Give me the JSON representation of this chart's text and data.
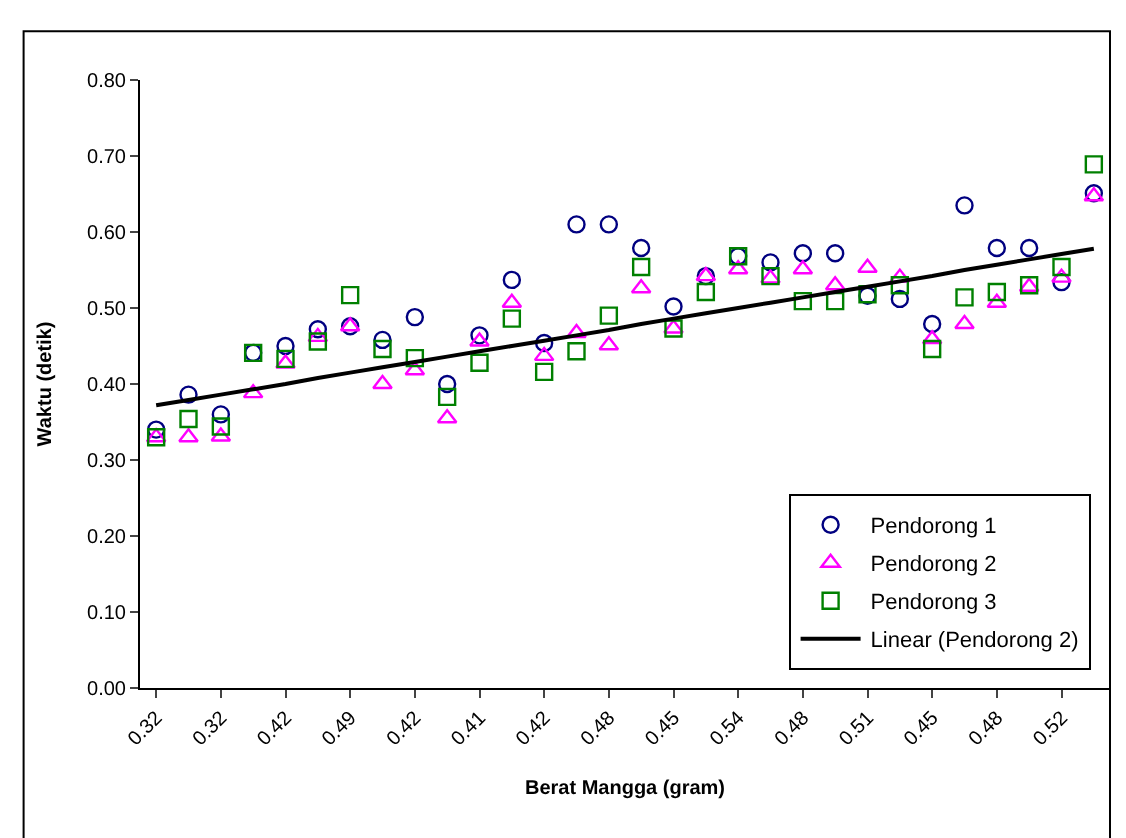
{
  "chart_data": {
    "type": "scatter",
    "xlabel": "Berat Mangga (gram)",
    "ylabel": "Waktu (detik)",
    "categories": [
      "0.32",
      null,
      "0.32",
      null,
      "0.42",
      null,
      "0.49",
      null,
      "0.42",
      null,
      "0.41",
      null,
      "0.42",
      null,
      "0.48",
      null,
      "0.45",
      null,
      "0.54",
      null,
      "0.48",
      null,
      "0.51",
      null,
      "0.45",
      null,
      "0.48",
      null,
      "0.52",
      null
    ],
    "series": [
      {
        "name": "Pendorong 1",
        "color": "#000080",
        "marker": "circle",
        "values": [
          0.34,
          0.386,
          0.36,
          0.441,
          0.45,
          0.472,
          0.476,
          0.458,
          0.488,
          0.4,
          0.464,
          0.537,
          0.454,
          0.61,
          0.61,
          0.579,
          0.502,
          0.542,
          0.568,
          0.56,
          0.572,
          0.572,
          0.516,
          0.512,
          0.479,
          0.635,
          0.579,
          0.579,
          0.534,
          0.651
        ]
      },
      {
        "name": "Pendorong 2",
        "color": "#ff00ff",
        "marker": "triangle",
        "values": [
          0.33,
          0.33,
          0.331,
          0.388,
          0.427,
          0.462,
          0.476,
          0.4,
          0.418,
          0.355,
          0.456,
          0.507,
          0.437,
          0.467,
          0.451,
          0.526,
          0.473,
          0.542,
          0.551,
          0.539,
          0.551,
          0.53,
          0.553,
          0.54,
          0.459,
          0.479,
          0.507,
          0.528,
          0.54,
          0.647
        ]
      },
      {
        "name": "Pendorong 3",
        "color": "#008000",
        "marker": "square",
        "values": [
          0.33,
          0.354,
          0.344,
          0.441,
          0.433,
          0.456,
          0.517,
          0.446,
          0.434,
          0.383,
          0.428,
          0.486,
          0.416,
          0.443,
          0.49,
          0.554,
          0.473,
          0.521,
          0.568,
          0.542,
          0.509,
          0.509,
          0.518,
          0.53,
          0.446,
          0.514,
          0.521,
          0.53,
          0.554,
          0.689
        ]
      },
      {
        "name": "Linear (Pendorong 2)",
        "type": "line",
        "color": "#000000",
        "marker": "none",
        "line_style": "solid",
        "values": [
          0.372,
          0.379,
          0.386,
          0.393,
          0.4,
          0.408,
          0.415,
          0.422,
          0.429,
          0.436,
          0.443,
          0.45,
          0.457,
          0.464,
          0.471,
          0.479,
          0.486,
          0.493,
          0.5,
          0.507,
          0.514,
          0.521,
          0.528,
          0.535,
          0.542,
          0.55,
          0.557,
          0.564,
          0.571,
          0.578
        ]
      }
    ],
    "ylim": [
      0,
      0.8
    ],
    "yticks": [
      {
        "value": 0,
        "label": "0.00"
      },
      {
        "value": 0.1,
        "label": "0.10"
      },
      {
        "value": 0.2,
        "label": "0.20"
      },
      {
        "value": 0.3,
        "label": "0.30"
      },
      {
        "value": 0.4,
        "label": "0.40"
      },
      {
        "value": 0.5,
        "label": "0.50"
      },
      {
        "value": 0.6,
        "label": "0.60"
      },
      {
        "value": 0.7,
        "label": "0.70"
      },
      {
        "value": 0.8,
        "label": "0.80"
      }
    ],
    "grid": false,
    "legend": "bottom right"
  }
}
